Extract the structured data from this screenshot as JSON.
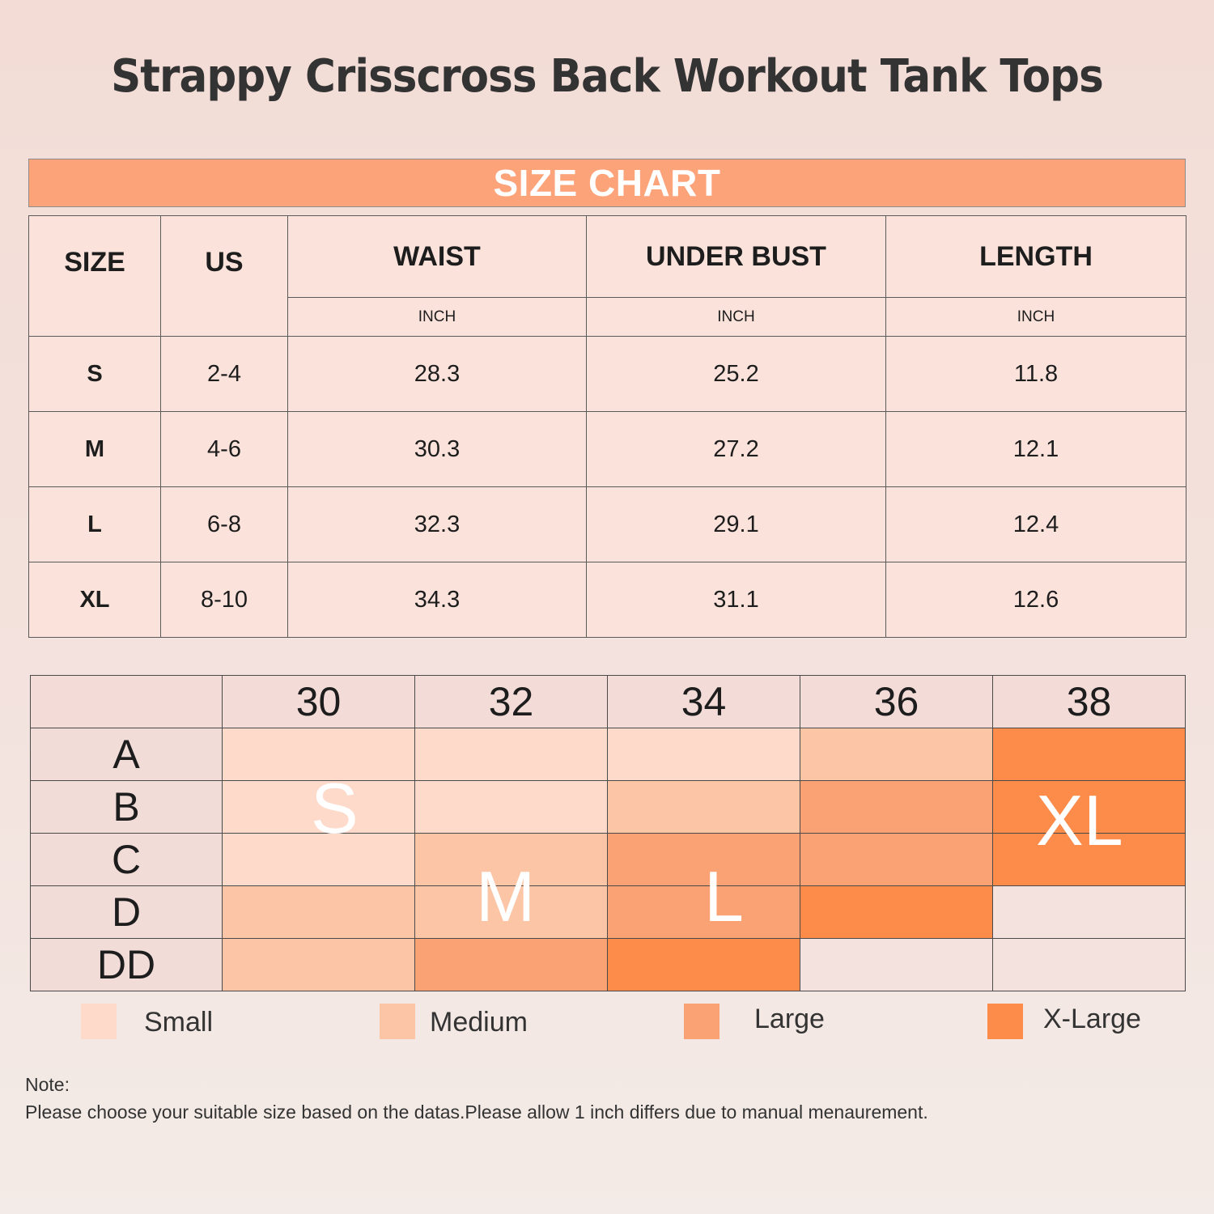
{
  "title": "Strappy Crisscross Back Workout Tank Tops",
  "banner": "SIZE CHART",
  "size_table": {
    "headers": {
      "size": "SIZE",
      "us": "US",
      "waist": "WAIST",
      "under_bust": "UNDER BUST",
      "length": "LENGTH"
    },
    "units": {
      "waist": "INCH",
      "under_bust": "INCH",
      "length": "INCH"
    },
    "rows": [
      {
        "size": "S",
        "us": "2-4",
        "waist": "28.3",
        "under_bust": "25.2",
        "length": "11.8"
      },
      {
        "size": "M",
        "us": "4-6",
        "waist": "30.3",
        "under_bust": "27.2",
        "length": "12.1"
      },
      {
        "size": "L",
        "us": "6-8",
        "waist": "32.3",
        "under_bust": "29.1",
        "length": "12.4"
      },
      {
        "size": "XL",
        "us": "8-10",
        "waist": "34.3",
        "under_bust": "31.1",
        "length": "12.6"
      }
    ]
  },
  "bra_grid": {
    "bands": [
      "30",
      "32",
      "34",
      "36",
      "38"
    ],
    "cups": [
      "A",
      "B",
      "C",
      "D",
      "DD"
    ],
    "overlay_labels": {
      "small": "S",
      "medium": "M",
      "large": "L",
      "xlarge": "XL"
    }
  },
  "legend": {
    "small": "Small",
    "medium": "Medium",
    "large": "Large",
    "xlarge": "X-Large"
  },
  "colors": {
    "small": "#fddac9",
    "medium": "#fcc5a5",
    "large": "#fba274",
    "xlarge": "#fd8b4a",
    "banner": "#fca37a"
  },
  "note": {
    "heading": "Note:",
    "text": "Please choose your suitable size based on the datas.Please allow 1 inch differs due to manual menaurement."
  }
}
